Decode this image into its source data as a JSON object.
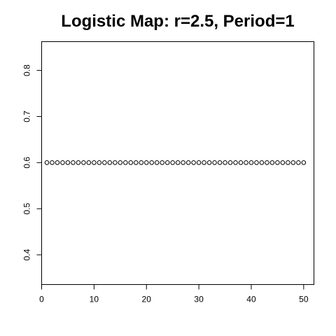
{
  "chart_data": {
    "type": "scatter",
    "title": "Logistic Map: r=2.5, Period=1",
    "xlabel": "",
    "ylabel": "",
    "xlim": [
      0,
      51.96
    ],
    "ylim": [
      0.3355,
      0.8624
    ],
    "x_ticks": [
      0,
      10,
      20,
      30,
      40,
      50
    ],
    "y_ticks": [
      0.4,
      0.5,
      0.6,
      0.7,
      0.8
    ],
    "x_tick_labels": [
      "0",
      "10",
      "20",
      "30",
      "40",
      "50"
    ],
    "y_tick_labels": [
      "0.4",
      "0.5",
      "0.6",
      "0.7",
      "0.8"
    ],
    "grid": false,
    "marker": "open-circle",
    "series": [
      {
        "x": [
          1,
          2,
          3,
          4,
          5,
          6,
          7,
          8,
          9,
          10,
          11,
          12,
          13,
          14,
          15,
          16,
          17,
          18,
          19,
          20,
          21,
          22,
          23,
          24,
          25,
          26,
          27,
          28,
          29,
          30,
          31,
          32,
          33,
          34,
          35,
          36,
          37,
          38,
          39,
          40,
          41,
          42,
          43,
          44,
          45,
          46,
          47,
          48,
          49,
          50
        ],
        "values": [
          0.6,
          0.6,
          0.6,
          0.6,
          0.6,
          0.6,
          0.6,
          0.6,
          0.6,
          0.6,
          0.6,
          0.6,
          0.6,
          0.6,
          0.6,
          0.6,
          0.6,
          0.6,
          0.6,
          0.6,
          0.6,
          0.6,
          0.6,
          0.6,
          0.6,
          0.6,
          0.6,
          0.6,
          0.6,
          0.6,
          0.6,
          0.6,
          0.6,
          0.6,
          0.6,
          0.6,
          0.6,
          0.6,
          0.6,
          0.6,
          0.6,
          0.6,
          0.6,
          0.6,
          0.6,
          0.6,
          0.6,
          0.6,
          0.6,
          0.6
        ]
      }
    ]
  },
  "colors": {
    "background": "#ffffff",
    "foreground": "#000000"
  }
}
